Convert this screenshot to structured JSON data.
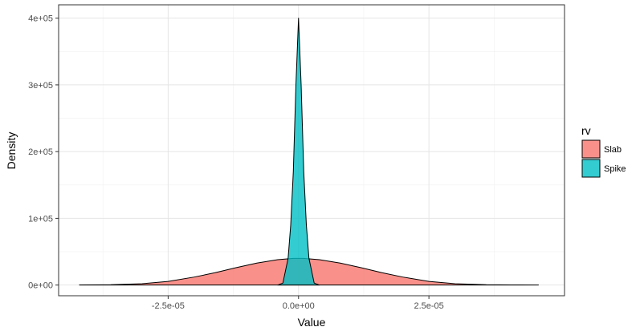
{
  "chart_data": {
    "type": "area",
    "xlabel": "Value",
    "ylabel": "Density",
    "xlim": [
      -4.6e-05,
      5.1e-05
    ],
    "ylim": [
      -16000,
      420000
    ],
    "x_ticks": [
      {
        "value": -2.5e-05,
        "label": "-2.5e-05"
      },
      {
        "value": 0,
        "label": "0.0e+00"
      },
      {
        "value": 2.5e-05,
        "label": "2.5e-05"
      }
    ],
    "x_minor_ticks": [
      -3.75e-05,
      -1.25e-05,
      1.25e-05,
      3.75e-05
    ],
    "y_ticks": [
      {
        "value": 0,
        "label": "0e+00"
      },
      {
        "value": 100000,
        "label": "1e+05"
      },
      {
        "value": 200000,
        "label": "2e+05"
      },
      {
        "value": 300000,
        "label": "3e+05"
      },
      {
        "value": 400000,
        "label": "4e+05"
      }
    ],
    "y_minor_ticks": [
      50000,
      150000,
      250000,
      350000
    ],
    "grid": true,
    "legend": {
      "title": "rv",
      "position": "right"
    },
    "series": [
      {
        "name": "Slab",
        "color": "#F8766D",
        "x_min": -4.2e-05,
        "x_max": 4.6e-05,
        "x": [
          -4.2e-05,
          -3.6e-05,
          -3e-05,
          -2.5e-05,
          -2e-05,
          -1.6e-05,
          -1.2e-05,
          -8e-06,
          -4e-06,
          -1e-06,
          1e-06,
          4e-06,
          8e-06,
          1.2e-05,
          1.6e-05,
          2e-05,
          2.5e-05,
          3e-05,
          3.6e-05,
          4.2e-05,
          4.6e-05
        ],
        "y": [
          200,
          500,
          2000,
          5500,
          12000,
          18500,
          26000,
          33000,
          38000,
          40000,
          40000,
          38000,
          33000,
          26000,
          18500,
          12000,
          5500,
          2000,
          500,
          200,
          100
        ]
      },
      {
        "name": "Spike",
        "color": "#00BFC4",
        "x_min": -4e-06,
        "x_max": 4e-06,
        "x": [
          -4e-06,
          -3e-06,
          -2e-06,
          -1.5e-06,
          -1e-06,
          -5e-07,
          0,
          5e-07,
          1e-06,
          1.5e-06,
          2e-06,
          3e-06,
          4e-06
        ],
        "y": [
          0,
          3000,
          40000,
          90000,
          170000,
          300000,
          400000,
          300000,
          170000,
          90000,
          40000,
          3000,
          0
        ]
      }
    ]
  }
}
